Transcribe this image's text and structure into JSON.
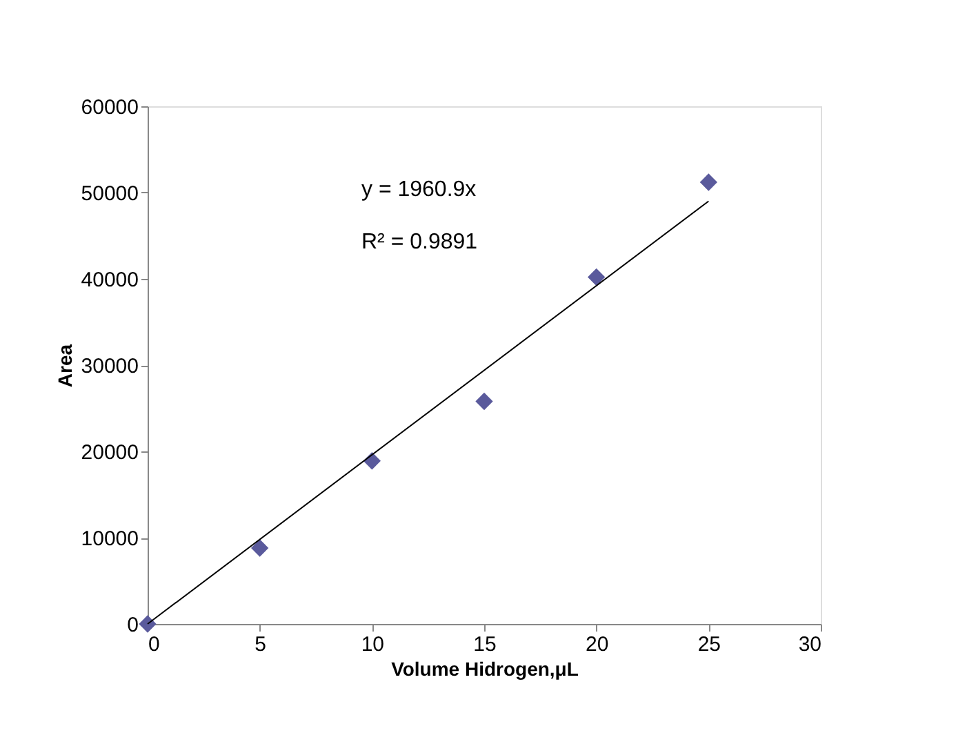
{
  "chart_data": {
    "type": "scatter",
    "xlabel": "Volume Hidrogen,μL",
    "ylabel": "Area",
    "x": [
      0,
      5,
      10,
      15,
      20,
      25
    ],
    "series": [
      {
        "color": "#5a5a9c",
        "marker": "diamond",
        "values": [
          0,
          8800,
          18900,
          25800,
          40200,
          51200
        ]
      },
      {
        "type": "line",
        "color": "#000000",
        "x": [
          0,
          25
        ],
        "values": [
          0,
          49000
        ],
        "marker": "none",
        "line_style": "solid"
      }
    ],
    "xlim": [
      0,
      30
    ],
    "xticks": [
      0,
      5,
      10,
      15,
      20,
      25,
      30
    ],
    "ylim": [
      0,
      60000
    ],
    "yticks": [
      0,
      10000,
      20000,
      30000,
      40000,
      50000,
      60000
    ],
    "annotations": [
      "y = 1960.9x",
      "R² = 0.9891"
    ],
    "grid": false
  }
}
